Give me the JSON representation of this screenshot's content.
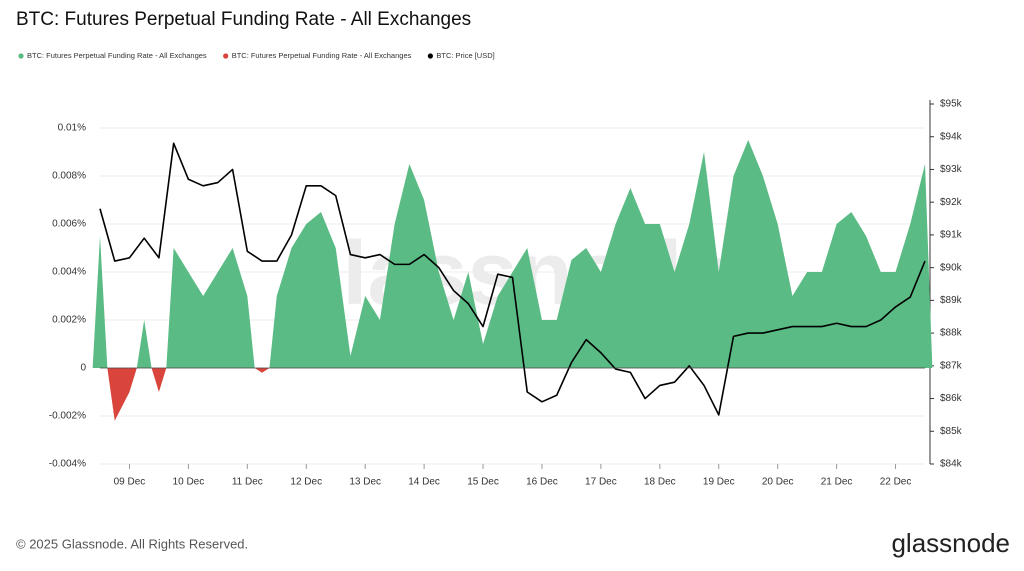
{
  "chart_data": {
    "type": "area",
    "title": "BTC: Futures Perpetual Funding Rate - All Exchanges",
    "watermark": "glassnode",
    "footer": "© 2025 Glassnode. All Rights Reserved.",
    "logo": "glassnode",
    "categories": [
      null,
      null,
      "09 Dec",
      null,
      null,
      null,
      "10 Dec",
      null,
      null,
      null,
      "11 Dec",
      null,
      null,
      null,
      "12 Dec",
      null,
      null,
      null,
      "13 Dec",
      null,
      null,
      null,
      "14 Dec",
      null,
      null,
      null,
      "15 Dec",
      null,
      null,
      null,
      "16 Dec",
      null,
      null,
      null,
      "17 Dec",
      null,
      null,
      null,
      "18 Dec",
      null,
      null,
      null,
      "19 Dec",
      null,
      null,
      null,
      "20 Dec",
      null,
      null,
      null,
      "21 Dec",
      null,
      null,
      null,
      "22 Dec",
      null,
      null
    ],
    "series": [
      {
        "name": "BTC: Futures Perpetual Funding Rate - All Exchanges",
        "color": "#5bbb84",
        "values": [
          0.0055,
          null,
          null,
          0.002,
          null,
          0.005,
          0.004,
          0.003,
          0.004,
          0.005,
          0.003,
          null,
          0.003,
          0.005,
          0.006,
          0.0065,
          0.005,
          0.0005,
          0.003,
          0.002,
          0.006,
          0.0085,
          0.007,
          0.004,
          0.002,
          0.004,
          0.001,
          0.003,
          0.004,
          0.005,
          0.002,
          0.002,
          0.0045,
          0.005,
          0.004,
          0.006,
          0.0075,
          0.006,
          0.006,
          0.004,
          0.006,
          0.009,
          0.004,
          0.008,
          0.0095,
          0.008,
          0.006,
          0.003,
          0.004,
          0.004,
          0.006,
          0.0065,
          0.0055,
          0.004,
          0.004,
          0.006,
          0.0085
        ]
      },
      {
        "name": "BTC: Futures Perpetual Funding Rate - All Exchanges",
        "color": "#d9453c",
        "values": [
          null,
          -0.0022,
          -0.001,
          null,
          -0.001,
          null,
          null,
          null,
          null,
          null,
          null,
          -0.0002,
          null,
          null,
          null,
          null,
          null,
          null,
          null,
          null,
          null,
          null,
          null,
          null,
          null,
          null,
          null,
          null,
          null,
          null,
          null,
          null,
          null,
          null,
          null,
          null,
          null,
          null,
          null,
          null,
          null,
          null,
          null,
          null,
          null,
          null,
          null,
          null,
          null,
          null,
          null,
          null,
          null,
          null,
          null,
          null,
          null
        ]
      },
      {
        "name": "BTC: Price [USD]",
        "color": "#000000",
        "axis": "y2",
        "values": [
          91800,
          90200,
          90300,
          90900,
          90300,
          93800,
          92700,
          92500,
          92600,
          93000,
          90500,
          90200,
          90200,
          91000,
          92500,
          92500,
          92200,
          90400,
          90300,
          90400,
          90100,
          90100,
          90400,
          90000,
          89300,
          88900,
          88200,
          89800,
          89700,
          86200,
          85900,
          86100,
          87100,
          87800,
          87400,
          86900,
          86800,
          86000,
          86400,
          86500,
          87000,
          86400,
          85500,
          87900,
          88000,
          88000,
          88100,
          88200,
          88200,
          88200,
          88300,
          88200,
          88200,
          88400,
          88800,
          89100,
          90200
        ]
      }
    ],
    "ylim": [
      -0.004,
      0.011
    ],
    "yticks": [
      {
        "value": 0.01,
        "label": "0.01%"
      },
      {
        "value": 0.008,
        "label": "0.008%"
      },
      {
        "value": 0.006,
        "label": "0.006%"
      },
      {
        "value": 0.004,
        "label": "0.004%"
      },
      {
        "value": 0.002,
        "label": "0.002%"
      },
      0,
      {
        "value": -0.002,
        "label": "-0.002%"
      },
      {
        "value": -0.004,
        "label": "-0.004%"
      }
    ],
    "y2lim": [
      84000,
      95000
    ],
    "y2ticks": [
      {
        "value": 95000,
        "label": "$95k"
      },
      {
        "value": 94000,
        "label": "$94k"
      },
      {
        "value": 93000,
        "label": "$93k"
      },
      {
        "value": 92000,
        "label": "$92k"
      },
      {
        "value": 91000,
        "label": "$91k"
      },
      {
        "value": 90000,
        "label": "$90k"
      },
      {
        "value": 89000,
        "label": "$89k"
      },
      {
        "value": 88000,
        "label": "$88k"
      },
      {
        "value": 87000,
        "label": "$87k"
      },
      {
        "value": 86000,
        "label": "$86k"
      },
      {
        "value": 85000,
        "label": "$85k"
      },
      {
        "value": 84000,
        "label": "$84k"
      }
    ],
    "grid": true,
    "legend": "top-left"
  }
}
